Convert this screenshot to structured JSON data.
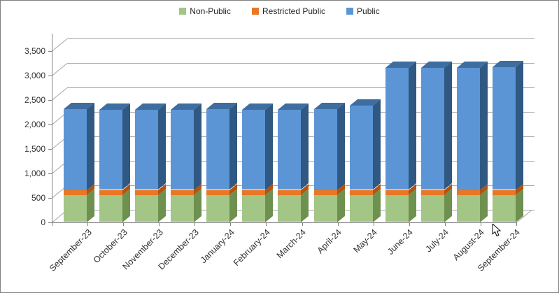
{
  "chart_data": {
    "type": "bar",
    "stacked": true,
    "style": "3d-column",
    "title": "",
    "xlabel": "",
    "ylabel": "",
    "categories": [
      "September-23",
      "October-23",
      "November-23",
      "December-23",
      "January-24",
      "February-24",
      "March-24",
      "April-24",
      "May-24",
      "June-24",
      "July-24",
      "August-24",
      "September-24"
    ],
    "series": [
      {
        "name": "Non-Public",
        "color": "#A3C585",
        "side_color": "#6F9150",
        "top_color": "#7FA45F",
        "values": [
          550,
          550,
          550,
          550,
          550,
          550,
          550,
          550,
          550,
          550,
          550,
          550,
          550
        ]
      },
      {
        "name": "Restricted Public",
        "color": "#E87824",
        "side_color": "#B4530F",
        "top_color": "#C45E12",
        "values": [
          100,
          100,
          100,
          100,
          100,
          100,
          100,
          100,
          100,
          100,
          100,
          100,
          100
        ]
      },
      {
        "name": "Public",
        "color": "#5B95D6",
        "side_color": "#2F5882",
        "top_color": "#3E6DA0",
        "values": [
          1650,
          1630,
          1635,
          1640,
          1645,
          1640,
          1635,
          1650,
          1720,
          2490,
          2490,
          2500,
          2510
        ]
      }
    ],
    "totals": [
      2300,
      2280,
      2285,
      2290,
      2295,
      2290,
      2285,
      2300,
      2370,
      3140,
      3140,
      3150,
      3160
    ],
    "ylim": [
      0,
      3500
    ],
    "ytick_step": 500,
    "y_tick_labels": [
      "0",
      "500",
      "1,000",
      "1,500",
      "2,000",
      "2,500",
      "3,000",
      "3,500"
    ],
    "grid": true,
    "legend_position": "top-center",
    "x_label_rotation_deg": -45
  },
  "legend": {
    "items": [
      {
        "label": "Non-Public"
      },
      {
        "label": "Restricted Public"
      },
      {
        "label": "Public"
      }
    ]
  },
  "colors": {
    "grid": "#a6a6a6",
    "axis": "#808080",
    "frame_border": "#808080",
    "text": "#303030",
    "background": "#ffffff"
  }
}
